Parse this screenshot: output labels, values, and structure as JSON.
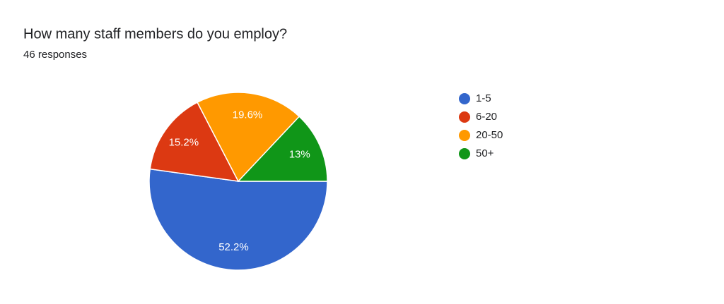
{
  "chart_data": {
    "type": "pie",
    "title": "How many staff members do you employ?",
    "subtitle": "46 responses",
    "categories": [
      "1-5",
      "6-20",
      "20-50",
      "50+"
    ],
    "values": [
      52.2,
      15.2,
      19.6,
      13
    ],
    "value_labels": [
      "52.2%",
      "15.2%",
      "19.6%",
      "13%"
    ],
    "colors": [
      "#3366cc",
      "#dc3912",
      "#ff9900",
      "#109618"
    ],
    "legend": "right"
  }
}
